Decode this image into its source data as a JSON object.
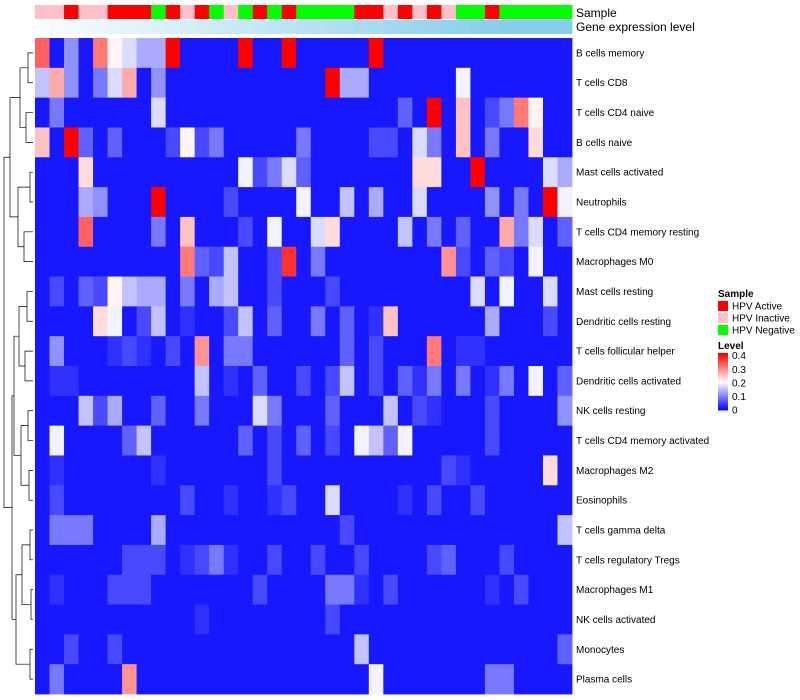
{
  "chart_data": {
    "type": "heatmap",
    "annotation_labels": [
      "Sample",
      "Gene expression level"
    ],
    "rows": [
      "B cells memory",
      "T cells CD8",
      "T cells CD4 naive",
      "B cells naive",
      "Mast cells activated",
      "Neutrophils",
      "T cells CD4 memory resting",
      "Macrophages M0",
      "Mast cells resting",
      "Dendritic cells resting",
      "T cells follicular helper",
      "Dendritic cells activated",
      "NK cells resting",
      "T cells CD4 memory activated",
      "Macrophages M2",
      "Eosinophils",
      "T cells gamma delta",
      "T cells regulatory  Tregs",
      "Macrophages M1",
      "NK cells activated",
      "Monocytes",
      "Plasma cells"
    ],
    "sample_groups": [
      "HPV Inactive",
      "HPV Inactive",
      "HPV Active",
      "HPV Inactive",
      "HPV Inactive",
      "HPV Active",
      "HPV Active",
      "HPV Active",
      "HPV Negative",
      "HPV Active",
      "HPV Inactive",
      "HPV Active",
      "HPV Negative",
      "HPV Inactive",
      "HPV Negative",
      "HPV Active",
      "HPV Negative",
      "HPV Active",
      "HPV Negative",
      "HPV Negative",
      "HPV Negative",
      "HPV Negative",
      "HPV Active",
      "HPV Active",
      "HPV Inactive",
      "HPV Active",
      "HPV Inactive",
      "HPV Active",
      "HPV Inactive",
      "HPV Negative",
      "HPV Negative",
      "HPV Active",
      "HPV Negative",
      "HPV Negative",
      "HPV Negative",
      "HPV Negative",
      "HPV Negative"
    ],
    "expression_level": [
      0.05,
      0.08,
      0.11,
      0.14,
      0.17,
      0.2,
      0.23,
      0.26,
      0.29,
      0.32,
      0.35,
      0.38,
      0.41,
      0.44,
      0.47,
      0.5,
      0.53,
      0.56,
      0.59,
      0.62,
      0.65,
      0.68,
      0.71,
      0.74,
      0.77,
      0.8,
      0.83,
      0.86,
      0.89,
      0.92,
      0.95,
      0.97,
      1.0,
      1.0,
      1.0,
      1.0,
      1.0
    ],
    "values": [
      [
        0.34,
        0.02,
        0.12,
        0.02,
        0.32,
        0.22,
        0.18,
        0.14,
        0.14,
        0.42,
        0.02,
        0.02,
        0.02,
        0.02,
        0.42,
        0.02,
        0.02,
        0.42,
        0.02,
        0.02,
        0.02,
        0.02,
        0.02,
        0.42,
        0.02,
        0.02,
        0.02,
        0.02,
        0.02,
        0.02,
        0.02,
        0.02,
        0.02,
        0.02,
        0.02,
        0.02,
        0.02
      ],
      [
        0.16,
        0.28,
        0.12,
        0.02,
        0.1,
        0.18,
        0.28,
        0.02,
        0.12,
        0.02,
        0.02,
        0.02,
        0.02,
        0.02,
        0.02,
        0.02,
        0.02,
        0.02,
        0.02,
        0.02,
        0.42,
        0.14,
        0.14,
        0.02,
        0.02,
        0.02,
        0.02,
        0.02,
        0.02,
        0.2,
        0.02,
        0.02,
        0.02,
        0.02,
        0.02,
        0.02,
        0.02
      ],
      [
        0.02,
        0.1,
        0.02,
        0.02,
        0.02,
        0.02,
        0.02,
        0.02,
        0.18,
        0.02,
        0.02,
        0.02,
        0.02,
        0.02,
        0.02,
        0.02,
        0.02,
        0.02,
        0.02,
        0.02,
        0.02,
        0.02,
        0.02,
        0.02,
        0.02,
        0.08,
        0.02,
        0.42,
        0.02,
        0.26,
        0.02,
        0.06,
        0.1,
        0.32,
        0.22,
        0.02,
        0.02
      ],
      [
        0.26,
        0.02,
        0.42,
        0.08,
        0.02,
        0.08,
        0.02,
        0.02,
        0.02,
        0.06,
        0.22,
        0.06,
        0.1,
        0.02,
        0.02,
        0.02,
        0.02,
        0.02,
        0.1,
        0.02,
        0.02,
        0.02,
        0.02,
        0.06,
        0.06,
        0.02,
        0.18,
        0.1,
        0.02,
        0.26,
        0.02,
        0.1,
        0.02,
        0.02,
        0.24,
        0.02,
        0.02
      ],
      [
        0.02,
        0.02,
        0.02,
        0.24,
        0.02,
        0.02,
        0.02,
        0.02,
        0.02,
        0.02,
        0.02,
        0.02,
        0.02,
        0.02,
        0.2,
        0.06,
        0.1,
        0.18,
        0.08,
        0.02,
        0.02,
        0.02,
        0.02,
        0.02,
        0.02,
        0.02,
        0.24,
        0.24,
        0.02,
        0.02,
        0.42,
        0.02,
        0.02,
        0.02,
        0.02,
        0.18,
        0.14
      ],
      [
        0.02,
        0.02,
        0.02,
        0.14,
        0.12,
        0.02,
        0.02,
        0.02,
        0.42,
        0.02,
        0.02,
        0.02,
        0.02,
        0.06,
        0.02,
        0.02,
        0.02,
        0.02,
        0.2,
        0.02,
        0.02,
        0.16,
        0.02,
        0.14,
        0.02,
        0.02,
        0.18,
        0.02,
        0.02,
        0.02,
        0.02,
        0.12,
        0.02,
        0.1,
        0.02,
        0.42,
        0.2
      ],
      [
        0.02,
        0.02,
        0.02,
        0.34,
        0.02,
        0.02,
        0.02,
        0.02,
        0.1,
        0.02,
        0.26,
        0.02,
        0.02,
        0.02,
        0.06,
        0.02,
        0.2,
        0.02,
        0.02,
        0.18,
        0.24,
        0.02,
        0.02,
        0.02,
        0.02,
        0.16,
        0.02,
        0.1,
        0.02,
        0.08,
        0.02,
        0.02,
        0.28,
        0.1,
        0.18,
        0.02,
        0.08
      ],
      [
        0.02,
        0.02,
        0.02,
        0.02,
        0.02,
        0.02,
        0.02,
        0.02,
        0.02,
        0.02,
        0.32,
        0.08,
        0.06,
        0.16,
        0.02,
        0.02,
        0.06,
        0.38,
        0.02,
        0.1,
        0.02,
        0.02,
        0.02,
        0.02,
        0.02,
        0.02,
        0.02,
        0.02,
        0.3,
        0.06,
        0.02,
        0.08,
        0.06,
        0.02,
        0.2,
        0.02,
        0.02
      ],
      [
        0.02,
        0.06,
        0.02,
        0.08,
        0.06,
        0.22,
        0.16,
        0.14,
        0.14,
        0.02,
        0.1,
        0.02,
        0.14,
        0.16,
        0.02,
        0.02,
        0.06,
        0.02,
        0.02,
        0.02,
        0.06,
        0.02,
        0.02,
        0.02,
        0.02,
        0.02,
        0.02,
        0.02,
        0.02,
        0.02,
        0.18,
        0.02,
        0.2,
        0.02,
        0.02,
        0.18,
        0.02
      ],
      [
        0.02,
        0.02,
        0.02,
        0.02,
        0.24,
        0.2,
        0.02,
        0.06,
        0.16,
        0.02,
        0.04,
        0.02,
        0.02,
        0.06,
        0.16,
        0.02,
        0.08,
        0.02,
        0.02,
        0.1,
        0.02,
        0.08,
        0.02,
        0.04,
        0.26,
        0.02,
        0.02,
        0.02,
        0.02,
        0.02,
        0.02,
        0.14,
        0.02,
        0.02,
        0.02,
        0.06,
        0.02
      ],
      [
        0.02,
        0.12,
        0.02,
        0.02,
        0.02,
        0.04,
        0.06,
        0.04,
        0.02,
        0.06,
        0.02,
        0.3,
        0.02,
        0.1,
        0.1,
        0.02,
        0.02,
        0.02,
        0.02,
        0.02,
        0.02,
        0.08,
        0.02,
        0.06,
        0.02,
        0.02,
        0.02,
        0.32,
        0.02,
        0.04,
        0.04,
        0.02,
        0.02,
        0.02,
        0.02,
        0.02,
        0.02
      ],
      [
        0.02,
        0.04,
        0.04,
        0.02,
        0.02,
        0.02,
        0.02,
        0.02,
        0.02,
        0.02,
        0.02,
        0.16,
        0.02,
        0.04,
        0.02,
        0.08,
        0.02,
        0.02,
        0.06,
        0.02,
        0.06,
        0.16,
        0.02,
        0.06,
        0.02,
        0.08,
        0.04,
        0.1,
        0.02,
        0.1,
        0.02,
        0.04,
        0.1,
        0.02,
        0.2,
        0.02,
        0.08
      ],
      [
        0.02,
        0.02,
        0.02,
        0.16,
        0.06,
        0.14,
        0.02,
        0.02,
        0.08,
        0.02,
        0.02,
        0.1,
        0.02,
        0.02,
        0.02,
        0.18,
        0.1,
        0.02,
        0.02,
        0.02,
        0.08,
        0.02,
        0.02,
        0.02,
        0.16,
        0.02,
        0.06,
        0.04,
        0.02,
        0.02,
        0.02,
        0.06,
        0.02,
        0.02,
        0.02,
        0.02,
        0.12
      ],
      [
        0.02,
        0.2,
        0.02,
        0.02,
        0.02,
        0.02,
        0.08,
        0.16,
        0.02,
        0.02,
        0.02,
        0.02,
        0.02,
        0.02,
        0.08,
        0.02,
        0.06,
        0.02,
        0.08,
        0.02,
        0.06,
        0.02,
        0.2,
        0.16,
        0.08,
        0.2,
        0.02,
        0.02,
        0.02,
        0.02,
        0.02,
        0.06,
        0.02,
        0.02,
        0.02,
        0.02,
        0.02
      ],
      [
        0.02,
        0.04,
        0.02,
        0.02,
        0.02,
        0.02,
        0.02,
        0.02,
        0.04,
        0.02,
        0.02,
        0.02,
        0.02,
        0.02,
        0.02,
        0.02,
        0.06,
        0.02,
        0.02,
        0.02,
        0.02,
        0.02,
        0.02,
        0.02,
        0.02,
        0.02,
        0.02,
        0.02,
        0.06,
        0.04,
        0.02,
        0.02,
        0.02,
        0.02,
        0.02,
        0.24,
        0.02
      ],
      [
        0.02,
        0.06,
        0.02,
        0.02,
        0.02,
        0.02,
        0.02,
        0.02,
        0.02,
        0.02,
        0.06,
        0.02,
        0.02,
        0.04,
        0.02,
        0.02,
        0.04,
        0.06,
        0.02,
        0.02,
        0.18,
        0.02,
        0.02,
        0.02,
        0.02,
        0.04,
        0.02,
        0.06,
        0.02,
        0.02,
        0.06,
        0.02,
        0.02,
        0.02,
        0.02,
        0.02,
        0.02
      ],
      [
        0.02,
        0.1,
        0.1,
        0.1,
        0.02,
        0.02,
        0.02,
        0.02,
        0.14,
        0.02,
        0.02,
        0.02,
        0.02,
        0.02,
        0.02,
        0.02,
        0.02,
        0.02,
        0.02,
        0.02,
        0.02,
        0.06,
        0.02,
        0.02,
        0.02,
        0.02,
        0.02,
        0.02,
        0.02,
        0.02,
        0.02,
        0.02,
        0.02,
        0.02,
        0.02,
        0.02,
        0.16
      ],
      [
        0.02,
        0.02,
        0.02,
        0.02,
        0.02,
        0.02,
        0.06,
        0.06,
        0.06,
        0.02,
        0.04,
        0.06,
        0.1,
        0.04,
        0.02,
        0.02,
        0.06,
        0.02,
        0.02,
        0.06,
        0.02,
        0.02,
        0.06,
        0.02,
        0.02,
        0.02,
        0.02,
        0.06,
        0.08,
        0.02,
        0.02,
        0.02,
        0.06,
        0.02,
        0.02,
        0.02,
        0.02
      ],
      [
        0.02,
        0.04,
        0.02,
        0.02,
        0.02,
        0.06,
        0.06,
        0.06,
        0.02,
        0.02,
        0.02,
        0.02,
        0.02,
        0.02,
        0.02,
        0.06,
        0.02,
        0.02,
        0.02,
        0.02,
        0.1,
        0.1,
        0.04,
        0.02,
        0.06,
        0.02,
        0.02,
        0.02,
        0.02,
        0.02,
        0.02,
        0.04,
        0.02,
        0.06,
        0.02,
        0.02,
        0.02
      ],
      [
        0.02,
        0.02,
        0.02,
        0.02,
        0.02,
        0.02,
        0.02,
        0.02,
        0.02,
        0.02,
        0.02,
        0.04,
        0.02,
        0.02,
        0.02,
        0.02,
        0.02,
        0.02,
        0.02,
        0.02,
        0.06,
        0.02,
        0.02,
        0.02,
        0.02,
        0.02,
        0.02,
        0.02,
        0.02,
        0.02,
        0.02,
        0.02,
        0.02,
        0.02,
        0.02,
        0.02,
        0.02
      ],
      [
        0.02,
        0.02,
        0.06,
        0.02,
        0.02,
        0.06,
        0.02,
        0.02,
        0.02,
        0.02,
        0.02,
        0.02,
        0.02,
        0.02,
        0.02,
        0.02,
        0.02,
        0.02,
        0.02,
        0.02,
        0.02,
        0.02,
        0.16,
        0.02,
        0.02,
        0.02,
        0.02,
        0.02,
        0.02,
        0.02,
        0.02,
        0.02,
        0.02,
        0.02,
        0.02,
        0.02,
        0.08
      ],
      [
        0.02,
        0.1,
        0.02,
        0.02,
        0.02,
        0.02,
        0.3,
        0.02,
        0.02,
        0.02,
        0.02,
        0.02,
        0.02,
        0.02,
        0.02,
        0.02,
        0.02,
        0.02,
        0.02,
        0.02,
        0.02,
        0.02,
        0.02,
        0.2,
        0.02,
        0.02,
        0.02,
        0.02,
        0.02,
        0.02,
        0.02,
        0.1,
        0.1,
        0.02,
        0.02,
        0.02,
        0.02
      ]
    ],
    "legend": [
      {
        "title": "Sample",
        "items": [
          {
            "label": "HPV Active",
            "color": "#ff0000"
          },
          {
            "label": "HPV Inactive",
            "color": "#ffc0cb"
          },
          {
            "label": "HPV Negative",
            "color": "#00ff00"
          }
        ]
      },
      {
        "title": "Level",
        "ticks": [
          {
            "value": 0.4,
            "label": "0.4"
          },
          {
            "value": 0.3,
            "label": "0.3"
          },
          {
            "value": 0.2,
            "label": "0.2"
          },
          {
            "value": 0.1,
            "label": "0.1"
          },
          {
            "value": 0,
            "label": "0"
          }
        ],
        "range": [
          0,
          0.42
        ]
      }
    ],
    "colors": {
      "low": "#0000ff",
      "mid": "#ffffff",
      "high": "#ff0000",
      "expression_low": "#ffffff",
      "expression_high": "#87ceeb"
    }
  }
}
